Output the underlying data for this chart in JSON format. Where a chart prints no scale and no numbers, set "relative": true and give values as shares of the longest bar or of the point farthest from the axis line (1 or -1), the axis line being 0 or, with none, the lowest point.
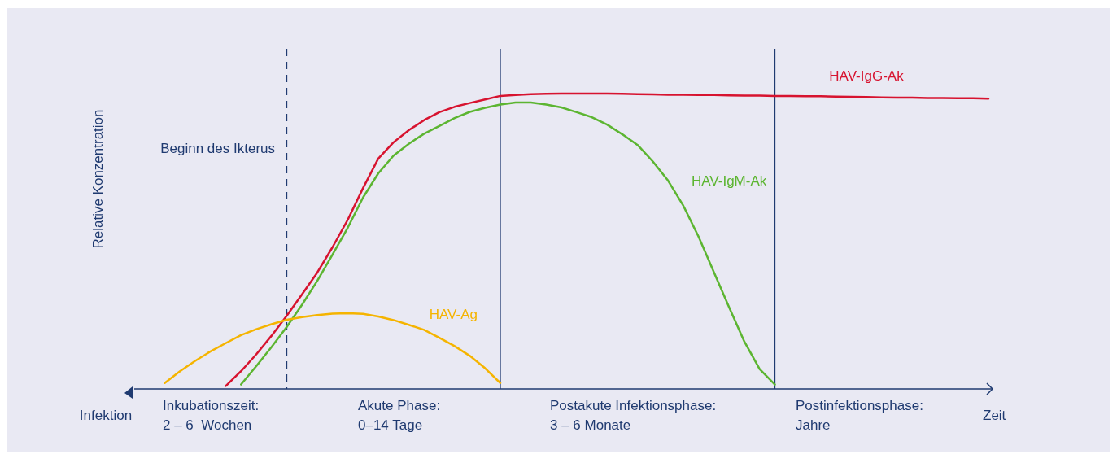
{
  "chart_data": {
    "type": "line",
    "relative": true,
    "ylabel": "Relative Konzentration",
    "xlabel": "Zeit",
    "categories": [
      null,
      null,
      null,
      null,
      null,
      null,
      null,
      null,
      null,
      null,
      null,
      null,
      null,
      null,
      null,
      null,
      null,
      null,
      null,
      null,
      null,
      null,
      null,
      null,
      null,
      null,
      null,
      null,
      null,
      null,
      null,
      null,
      null,
      null,
      null,
      null,
      null,
      null,
      null,
      null,
      null,
      null,
      null,
      null,
      null,
      null,
      null,
      null,
      null,
      null,
      null,
      null,
      null,
      null,
      null,
      null,
      null
    ],
    "series": [
      {
        "name": "HAV-IgG-Ak",
        "color": "#d7132f",
        "values": [
          null,
          null,
          null,
          null,
          null,
          null,
          0.01,
          0.06,
          0.117,
          0.18,
          0.248,
          0.32,
          0.394,
          0.48,
          0.573,
          0.68,
          0.78,
          0.835,
          0.876,
          0.91,
          0.937,
          0.955,
          0.968,
          0.98,
          0.992,
          0.995,
          0.998,
          0.999,
          1,
          1,
          1,
          1,
          0.999,
          0.998,
          0.997,
          0.996,
          0.996,
          0.995,
          0.995,
          0.994,
          0.993,
          0.993,
          0.992,
          0.992,
          0.991,
          0.991,
          0.99,
          0.989,
          0.988,
          0.987,
          0.986,
          0.986,
          0.985,
          0.985,
          0.984,
          0.984,
          0.983
        ]
      },
      {
        "name": "HAV-IgM-Ak",
        "color": "#5cb531",
        "values": [
          null,
          null,
          null,
          null,
          null,
          null,
          null,
          0.015,
          0.077,
          0.142,
          0.21,
          0.285,
          0.366,
          0.455,
          0.546,
          0.648,
          0.73,
          0.79,
          0.83,
          0.864,
          0.89,
          0.917,
          0.938,
          0.952,
          0.963,
          0.97,
          0.97,
          0.963,
          0.953,
          0.937,
          0.92,
          0.895,
          0.862,
          0.826,
          0.77,
          0.705,
          0.62,
          0.515,
          0.395,
          0.276,
          0.16,
          0.067,
          0.015,
          null,
          null,
          null,
          null,
          null,
          null,
          null,
          null,
          null,
          null,
          null,
          null,
          null,
          null
        ]
      },
      {
        "name": "HAV-Ag",
        "color": "#f5b400",
        "values": [
          null,
          null,
          0.02,
          0.06,
          0.095,
          0.127,
          0.155,
          0.182,
          0.202,
          0.219,
          0.234,
          0.243,
          0.25,
          0.255,
          0.256,
          0.254,
          0.245,
          0.233,
          0.217,
          0.2,
          0.173,
          0.145,
          0.112,
          0.07,
          0.02,
          null,
          null,
          null,
          null,
          null,
          null,
          null,
          null,
          null,
          null,
          null,
          null,
          null,
          null,
          null,
          null,
          null,
          null,
          null,
          null,
          null,
          null,
          null,
          null,
          null,
          null,
          null,
          null,
          null,
          null,
          null,
          null
        ]
      }
    ],
    "annotations": [
      "Infektion",
      "Beginn des Ikterus",
      "Inkubationszeit:\n2 – 6  Wochen",
      "Akute Phase:\n0–14 Tage",
      "Postakute Infektionsphase:\n3 – 6 Monate",
      "Postinfektionsphase:\nJahre"
    ]
  }
}
